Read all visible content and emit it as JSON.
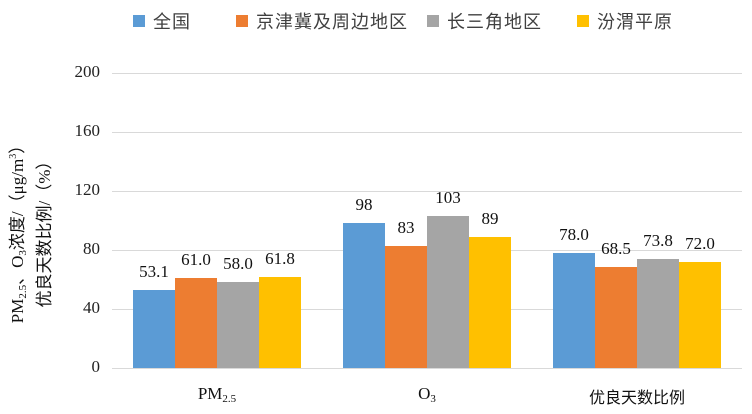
{
  "chart_data": {
    "type": "bar",
    "title": "",
    "categories": [
      "PM2.5",
      "O3",
      "优良天数比例"
    ],
    "series": [
      {
        "name": "全国",
        "color": "#5b9bd5",
        "values": [
          53.1,
          98,
          78.0
        ],
        "labels": [
          "53.1",
          "98",
          "78.0"
        ]
      },
      {
        "name": "京津冀及周边地区",
        "color": "#ed7d31",
        "values": [
          61.0,
          83,
          68.5
        ],
        "labels": [
          "61.0",
          "83",
          "68.5"
        ]
      },
      {
        "name": "长三角地区",
        "color": "#a5a5a5",
        "values": [
          58.0,
          103,
          73.8
        ],
        "labels": [
          "58.0",
          "103",
          "73.8"
        ]
      },
      {
        "name": "汾渭平原",
        "color": "#ffc000",
        "values": [
          61.8,
          89,
          72.0
        ],
        "labels": [
          "61.8",
          "89",
          "72.0"
        ]
      }
    ],
    "xlabel": "",
    "ylabel": "PM2.5、O3浓度/（μg/m³）优良天数比例/（%）",
    "ylim": [
      0,
      200
    ],
    "yticks": [
      0,
      40,
      80,
      120,
      160,
      200
    ],
    "grid": true,
    "legend_position": "top"
  },
  "legend": [
    {
      "label": "全国",
      "color": "#5b9bd5"
    },
    {
      "label": "京津冀及周边地区",
      "color": "#ed7d31"
    },
    {
      "label": "长三角地区",
      "color": "#a5a5a5"
    },
    {
      "label": "汾渭平原",
      "color": "#ffc000"
    }
  ],
  "axis": {
    "ylabel_line1_a": "PM",
    "ylabel_line1_sub1": "2.5",
    "ylabel_line1_b": "、O",
    "ylabel_line1_sub2": "3",
    "ylabel_line1_c": "浓度/（μg/m",
    "ylabel_line1_sup": "3",
    "ylabel_line1_d": "）",
    "ylabel_line2": "优良天数比例/（%）",
    "yticks": [
      "200",
      "160",
      "120",
      "80",
      "40",
      "0"
    ]
  },
  "xaxis": {
    "cat1_main": "PM",
    "cat1_sub": "2.5",
    "cat2_main": "O",
    "cat2_sub": "3",
    "cat3": "优良天数比例"
  }
}
